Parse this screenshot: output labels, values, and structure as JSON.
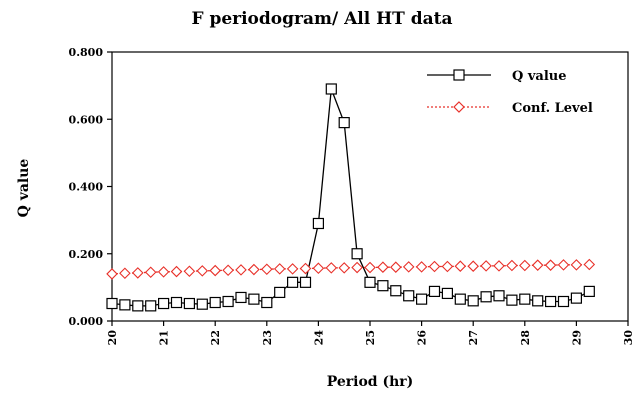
{
  "chart_data": {
    "type": "line",
    "title": "F periodogram/ All HT data",
    "xlabel": "Period (hr)",
    "ylabel": "Q value",
    "xlim": [
      20,
      30
    ],
    "ylim": [
      0,
      0.8
    ],
    "x_ticks": [
      "20",
      "21",
      "22",
      "23",
      "24",
      "25",
      "26",
      "27",
      "28",
      "29",
      "30"
    ],
    "y_ticks": [
      "0.000",
      "0.200",
      "0.400",
      "0.600",
      "0.800"
    ],
    "legend_position": "top-right",
    "grid": false,
    "series": [
      {
        "name": "Q value",
        "color": "#000000",
        "marker": "square",
        "line": "solid",
        "points": [
          [
            20.0,
            0.052
          ],
          [
            20.25,
            0.048
          ],
          [
            20.5,
            0.045
          ],
          [
            20.75,
            0.045
          ],
          [
            21.0,
            0.052
          ],
          [
            21.25,
            0.055
          ],
          [
            21.5,
            0.052
          ],
          [
            21.75,
            0.05
          ],
          [
            22.0,
            0.055
          ],
          [
            22.25,
            0.058
          ],
          [
            22.5,
            0.07
          ],
          [
            22.75,
            0.065
          ],
          [
            23.0,
            0.055
          ],
          [
            23.25,
            0.085
          ],
          [
            23.5,
            0.115
          ],
          [
            23.75,
            0.115
          ],
          [
            24.0,
            0.29
          ],
          [
            24.25,
            0.69
          ],
          [
            24.5,
            0.59
          ],
          [
            24.75,
            0.2
          ],
          [
            25.0,
            0.115
          ],
          [
            25.25,
            0.105
          ],
          [
            25.5,
            0.09
          ],
          [
            25.75,
            0.075
          ],
          [
            26.0,
            0.065
          ],
          [
            26.25,
            0.088
          ],
          [
            26.5,
            0.082
          ],
          [
            26.75,
            0.065
          ],
          [
            27.0,
            0.06
          ],
          [
            27.25,
            0.072
          ],
          [
            27.5,
            0.075
          ],
          [
            27.75,
            0.062
          ],
          [
            28.0,
            0.065
          ],
          [
            28.25,
            0.06
          ],
          [
            28.5,
            0.058
          ],
          [
            28.75,
            0.058
          ],
          [
            29.0,
            0.068
          ],
          [
            29.25,
            0.088
          ]
        ]
      },
      {
        "name": "Conf. Level",
        "color": "#e8312a",
        "marker": "diamond",
        "line": "dotted",
        "points": [
          [
            20.0,
            0.14
          ],
          [
            20.25,
            0.142
          ],
          [
            20.5,
            0.143
          ],
          [
            20.75,
            0.145
          ],
          [
            21.0,
            0.146
          ],
          [
            21.25,
            0.147
          ],
          [
            21.5,
            0.148
          ],
          [
            21.75,
            0.149
          ],
          [
            22.0,
            0.15
          ],
          [
            22.25,
            0.151
          ],
          [
            22.5,
            0.152
          ],
          [
            22.75,
            0.153
          ],
          [
            23.0,
            0.154
          ],
          [
            23.25,
            0.155
          ],
          [
            23.5,
            0.155
          ],
          [
            23.75,
            0.156
          ],
          [
            24.0,
            0.157
          ],
          [
            24.25,
            0.158
          ],
          [
            24.5,
            0.158
          ],
          [
            24.75,
            0.159
          ],
          [
            25.0,
            0.159
          ],
          [
            25.25,
            0.16
          ],
          [
            25.5,
            0.16
          ],
          [
            25.75,
            0.161
          ],
          [
            26.0,
            0.161
          ],
          [
            26.25,
            0.162
          ],
          [
            26.5,
            0.162
          ],
          [
            26.75,
            0.163
          ],
          [
            27.0,
            0.163
          ],
          [
            27.25,
            0.164
          ],
          [
            27.5,
            0.164
          ],
          [
            27.75,
            0.165
          ],
          [
            28.0,
            0.165
          ],
          [
            28.25,
            0.166
          ],
          [
            28.5,
            0.166
          ],
          [
            28.75,
            0.167
          ],
          [
            29.0,
            0.167
          ],
          [
            29.25,
            0.168
          ]
        ]
      }
    ]
  }
}
